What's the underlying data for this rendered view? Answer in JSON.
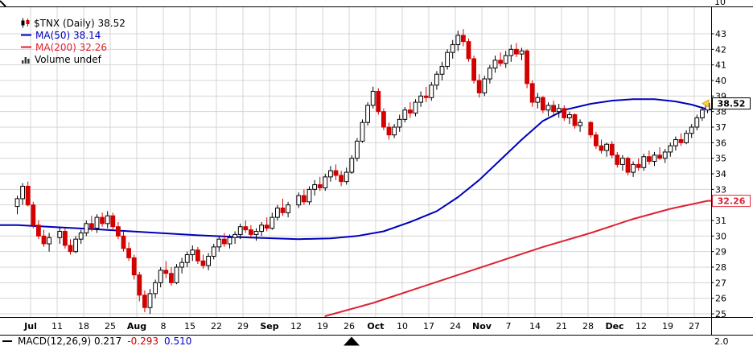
{
  "colors": {
    "up_candle": "#000000",
    "down_candle": "#d40000",
    "ma50": "#0000bb",
    "ma200": "#dd2233",
    "grid": "#d4d4d4",
    "marker": "#ffd24a",
    "axis_text": "#000000"
  },
  "chart_data": {
    "type": "candlestick",
    "title": "$TNX (Daily)",
    "legend": {
      "symbol_label": "$TNX (Daily) 38.52",
      "ma50_label": "MA(50) 38.14",
      "ma200_label": "MA(200) 32.26",
      "volume_label": "Volume undef"
    },
    "upper_panel_axis_label": "10",
    "lower_panel": {
      "macd_label": "MACD(12,26,9) 0.217",
      "macd_signal": "-0.293",
      "macd_hist": "0.510",
      "axis_label": "2.0"
    },
    "ylim": [
      25,
      43
    ],
    "y_tick_labels": [
      "43",
      "42",
      "41",
      "40",
      "39",
      "38",
      "37",
      "36",
      "35",
      "34",
      "33",
      "31",
      "30",
      "29",
      "28",
      "27",
      "26",
      "25"
    ],
    "x_labels": [
      "Jul",
      "11",
      "18",
      "25",
      "Aug",
      "8",
      "15",
      "22",
      "29",
      "Sep",
      "12",
      "19",
      "26",
      "Oct",
      "10",
      "17",
      "24",
      "Nov",
      "7",
      "14",
      "21",
      "28",
      "Dec",
      "12",
      "19",
      "27"
    ],
    "month_labels": [
      "Jul",
      "Aug",
      "Sep",
      "Oct",
      "Nov",
      "Dec"
    ],
    "last": 38.52,
    "last_price_label": "38.52",
    "preface_days": 3,
    "week_day_counts": [
      4,
      5,
      5,
      5,
      5,
      5,
      5,
      5,
      5,
      4,
      5,
      5,
      5,
      5,
      5,
      5,
      5,
      5,
      5,
      5,
      4,
      5,
      5,
      5,
      5,
      3
    ],
    "candles": [
      [
        31.9,
        32.6,
        31.4,
        32.4
      ],
      [
        32.4,
        33.4,
        32.0,
        33.2
      ],
      [
        33.2,
        33.5,
        31.9,
        32.0
      ],
      [
        32.0,
        32.2,
        30.5,
        30.7
      ],
      [
        30.7,
        31.0,
        29.8,
        30.0
      ],
      [
        30.0,
        30.4,
        29.3,
        29.5
      ],
      [
        29.5,
        30.2,
        29.0,
        29.9
      ],
      [
        29.9,
        30.6,
        29.5,
        30.3
      ],
      [
        30.3,
        30.5,
        29.2,
        29.4
      ],
      [
        29.4,
        29.8,
        28.8,
        29.0
      ],
      [
        29.0,
        30.0,
        28.9,
        29.8
      ],
      [
        29.8,
        30.4,
        29.5,
        30.2
      ],
      [
        30.2,
        31.0,
        30.0,
        30.8
      ],
      [
        30.8,
        31.3,
        30.3,
        30.5
      ],
      [
        30.5,
        31.4,
        30.2,
        31.2
      ],
      [
        31.2,
        31.5,
        30.6,
        30.8
      ],
      [
        30.8,
        31.6,
        30.5,
        31.3
      ],
      [
        31.3,
        31.5,
        30.4,
        30.6
      ],
      [
        30.6,
        30.9,
        29.8,
        30.0
      ],
      [
        30.0,
        30.3,
        29.0,
        29.2
      ],
      [
        29.2,
        29.6,
        28.4,
        28.6
      ],
      [
        28.6,
        28.8,
        27.2,
        27.5
      ],
      [
        27.5,
        27.7,
        25.8,
        26.2
      ],
      [
        26.2,
        26.5,
        25.1,
        25.4
      ],
      [
        25.4,
        26.6,
        25.0,
        26.3
      ],
      [
        26.3,
        27.2,
        26.0,
        27.0
      ],
      [
        27.0,
        28.0,
        26.7,
        27.8
      ],
      [
        27.8,
        28.4,
        27.3,
        27.6
      ],
      [
        27.6,
        28.0,
        26.8,
        27.0
      ],
      [
        27.0,
        28.2,
        26.9,
        28.0
      ],
      [
        28.0,
        28.6,
        27.6,
        28.3
      ],
      [
        28.3,
        29.0,
        28.0,
        28.8
      ],
      [
        28.8,
        29.4,
        28.4,
        29.1
      ],
      [
        29.1,
        29.3,
        28.2,
        28.4
      ],
      [
        28.4,
        28.8,
        27.9,
        28.1
      ],
      [
        28.1,
        28.9,
        27.8,
        28.7
      ],
      [
        28.7,
        29.5,
        28.5,
        29.3
      ],
      [
        29.3,
        30.0,
        29.0,
        29.8
      ],
      [
        29.8,
        30.2,
        29.3,
        29.5
      ],
      [
        29.5,
        30.1,
        29.2,
        29.9
      ],
      [
        29.9,
        30.3,
        29.5,
        30.1
      ],
      [
        30.1,
        30.8,
        29.8,
        30.6
      ],
      [
        30.6,
        31.0,
        30.2,
        30.4
      ],
      [
        30.4,
        30.7,
        29.9,
        30.1
      ],
      [
        30.1,
        30.5,
        29.7,
        30.3
      ],
      [
        30.3,
        30.9,
        30.0,
        30.7
      ],
      [
        30.7,
        31.2,
        30.3,
        30.5
      ],
      [
        30.5,
        31.5,
        30.4,
        31.2
      ],
      [
        31.2,
        32.0,
        31.0,
        31.8
      ],
      [
        31.8,
        32.4,
        31.3,
        31.5
      ],
      [
        31.5,
        32.2,
        31.2,
        32.0
      ],
      [
        32.0,
        32.8,
        31.8,
        32.6
      ],
      [
        32.6,
        33.0,
        32.0,
        32.2
      ],
      [
        32.2,
        33.2,
        32.0,
        33.0
      ],
      [
        33.0,
        33.6,
        32.6,
        33.3
      ],
      [
        33.3,
        33.8,
        32.9,
        33.1
      ],
      [
        33.1,
        34.0,
        32.9,
        33.8
      ],
      [
        33.8,
        34.5,
        33.5,
        34.2
      ],
      [
        34.2,
        34.6,
        33.6,
        33.9
      ],
      [
        33.9,
        34.2,
        33.2,
        33.5
      ],
      [
        33.5,
        34.4,
        33.3,
        34.1
      ],
      [
        34.1,
        35.2,
        34.0,
        35.0
      ],
      [
        35.0,
        36.3,
        34.8,
        36.1
      ],
      [
        36.1,
        37.5,
        36.0,
        37.3
      ],
      [
        37.3,
        38.6,
        37.1,
        38.4
      ],
      [
        38.4,
        39.6,
        38.2,
        39.3
      ],
      [
        39.3,
        39.5,
        37.8,
        38.0
      ],
      [
        38.0,
        38.2,
        36.8,
        37.0
      ],
      [
        37.0,
        37.3,
        36.2,
        36.5
      ],
      [
        36.5,
        37.2,
        36.3,
        37.0
      ],
      [
        37.0,
        37.8,
        36.7,
        37.5
      ],
      [
        37.5,
        38.3,
        37.3,
        38.1
      ],
      [
        38.1,
        38.6,
        37.6,
        37.9
      ],
      [
        37.9,
        38.8,
        37.7,
        38.6
      ],
      [
        38.6,
        39.3,
        38.3,
        39.0
      ],
      [
        39.0,
        39.6,
        38.6,
        38.9
      ],
      [
        38.9,
        39.9,
        38.7,
        39.7
      ],
      [
        39.7,
        40.6,
        39.4,
        40.4
      ],
      [
        40.4,
        41.2,
        40.0,
        40.9
      ],
      [
        40.9,
        42.0,
        40.7,
        41.8
      ],
      [
        41.8,
        42.6,
        41.4,
        42.3
      ],
      [
        42.3,
        43.2,
        41.9,
        42.9
      ],
      [
        42.9,
        43.3,
        42.2,
        42.5
      ],
      [
        42.5,
        42.7,
        41.2,
        41.4
      ],
      [
        41.4,
        41.6,
        39.8,
        40.0
      ],
      [
        40.0,
        40.4,
        38.9,
        39.2
      ],
      [
        39.2,
        40.3,
        39.0,
        40.1
      ],
      [
        40.1,
        41.0,
        39.8,
        40.8
      ],
      [
        40.8,
        41.6,
        40.5,
        41.3
      ],
      [
        41.3,
        41.8,
        40.9,
        41.1
      ],
      [
        41.1,
        41.9,
        40.8,
        41.6
      ],
      [
        41.6,
        42.3,
        41.2,
        42.0
      ],
      [
        42.0,
        42.4,
        41.5,
        41.7
      ],
      [
        41.7,
        42.1,
        41.3,
        41.9
      ],
      [
        41.9,
        42.0,
        39.5,
        39.8
      ],
      [
        39.8,
        40.0,
        38.3,
        38.6
      ],
      [
        38.6,
        39.2,
        38.2,
        38.9
      ],
      [
        38.9,
        39.0,
        37.9,
        38.1
      ],
      [
        38.1,
        38.6,
        37.7,
        38.4
      ],
      [
        38.4,
        38.7,
        37.8,
        38.0
      ],
      [
        38.0,
        38.5,
        37.6,
        38.2
      ],
      [
        38.2,
        38.4,
        37.4,
        37.6
      ],
      [
        37.6,
        38.0,
        37.2,
        37.8
      ],
      [
        37.8,
        37.9,
        36.9,
        37.1
      ],
      [
        37.1,
        37.5,
        36.7,
        37.3
      ],
      [
        37.3,
        37.4,
        36.3,
        36.5
      ],
      [
        36.5,
        36.7,
        35.6,
        35.8
      ],
      [
        35.8,
        36.2,
        35.3,
        35.5
      ],
      [
        35.5,
        36.0,
        35.1,
        35.9
      ],
      [
        35.9,
        36.1,
        35.0,
        35.2
      ],
      [
        35.2,
        35.4,
        34.4,
        34.6
      ],
      [
        34.6,
        35.2,
        34.2,
        35.0
      ],
      [
        35.0,
        35.1,
        33.9,
        34.1
      ],
      [
        34.1,
        34.8,
        33.8,
        34.6
      ],
      [
        34.6,
        35.0,
        34.2,
        34.4
      ],
      [
        34.4,
        35.3,
        34.2,
        35.1
      ],
      [
        35.1,
        35.5,
        34.6,
        34.8
      ],
      [
        34.8,
        35.4,
        34.5,
        35.2
      ],
      [
        35.2,
        35.7,
        34.9,
        35.0
      ],
      [
        35.0,
        35.6,
        34.7,
        35.4
      ],
      [
        35.4,
        36.0,
        35.1,
        35.8
      ],
      [
        35.8,
        36.4,
        35.5,
        36.2
      ],
      [
        36.2,
        36.6,
        35.8,
        36.0
      ],
      [
        36.0,
        36.8,
        35.9,
        36.6
      ],
      [
        36.6,
        37.2,
        36.3,
        37.0
      ],
      [
        37.0,
        37.8,
        36.8,
        37.6
      ],
      [
        37.6,
        38.3,
        37.4,
        38.1
      ],
      [
        38.1,
        38.7,
        37.9,
        38.52
      ]
    ],
    "ma50": {
      "name": "MA(50)",
      "value": 38.14,
      "points": [
        [
          0,
          30.7
        ],
        [
          13,
          30.45
        ],
        [
          23,
          30.25
        ],
        [
          33,
          30.05
        ],
        [
          43,
          29.9
        ],
        [
          51,
          29.8
        ],
        [
          57,
          29.85
        ],
        [
          62,
          30.0
        ],
        [
          67,
          30.3
        ],
        [
          72,
          30.9
        ],
        [
          77,
          31.6
        ],
        [
          81,
          32.5
        ],
        [
          85,
          33.6
        ],
        [
          89,
          34.9
        ],
        [
          93,
          36.2
        ],
        [
          97,
          37.4
        ],
        [
          101,
          38.1
        ],
        [
          105,
          38.5
        ],
        [
          109,
          38.7
        ],
        [
          113,
          38.8
        ],
        [
          117,
          38.8
        ],
        [
          121,
          38.65
        ],
        [
          124,
          38.45
        ],
        [
          127,
          38.14
        ]
      ]
    },
    "ma200": {
      "name": "MA(200)",
      "value": 32.26,
      "price_label": "32.26",
      "points": [
        [
          56,
          24.85
        ],
        [
          65,
          25.7
        ],
        [
          73,
          26.6
        ],
        [
          81,
          27.5
        ],
        [
          89,
          28.4
        ],
        [
          97,
          29.3
        ],
        [
          105,
          30.2
        ],
        [
          113,
          31.1
        ],
        [
          120,
          31.75
        ],
        [
          127,
          32.26
        ]
      ]
    }
  }
}
